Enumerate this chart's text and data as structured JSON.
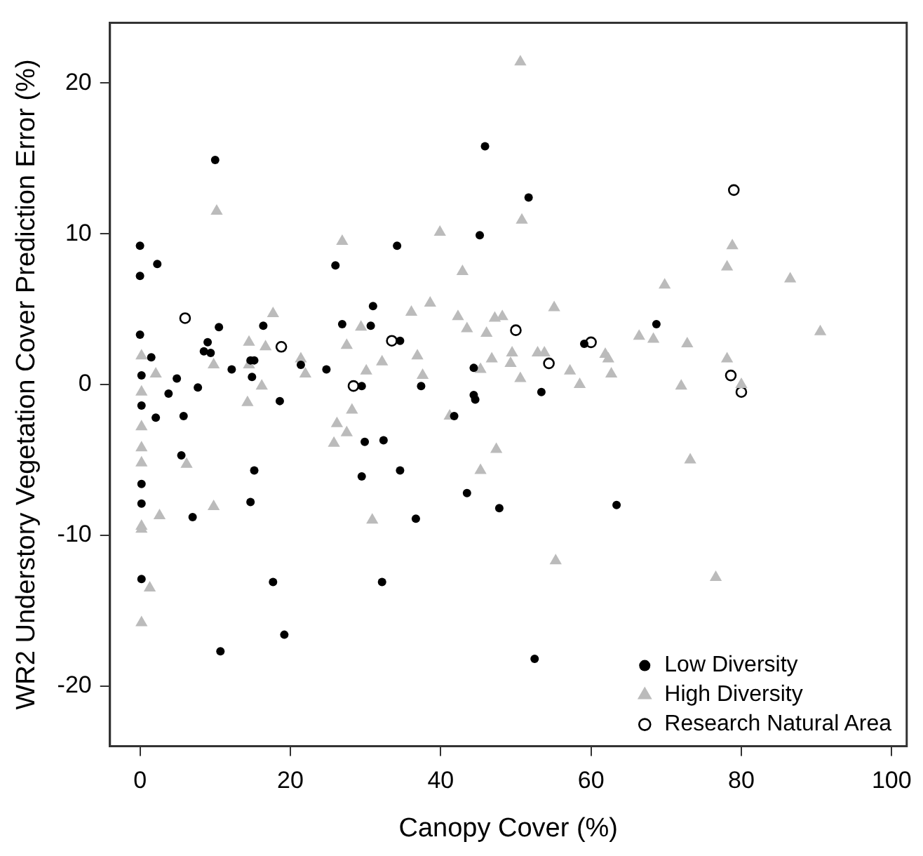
{
  "chart_data": {
    "type": "scatter",
    "xlabel": "Canopy Cover (%)",
    "ylabel": "WR2 Understory Vegetation Cover Prediction Error (%)",
    "xlim": [
      -4,
      102
    ],
    "xticks": [
      0,
      20,
      40,
      60,
      80,
      100
    ],
    "ylim": [
      -24,
      24
    ],
    "yticks": [
      -20,
      -10,
      0,
      10,
      20
    ],
    "grid": false,
    "legend": "bottom right",
    "series": [
      {
        "name": "Low Diversity",
        "color": "#000000",
        "marker": "circle",
        "x": [
          0,
          0,
          2.3,
          10,
          0,
          1.5,
          0.2,
          4.9,
          3.8,
          7.7,
          10.5,
          9,
          8.5,
          9.4,
          12.2,
          14.7,
          15.2,
          14.9,
          16.4,
          0.2,
          2.1,
          5.8,
          5.5,
          15.2,
          0.2,
          0.2,
          7,
          14.7,
          0.2,
          17.7,
          32.2,
          19.2,
          10.7,
          29.9,
          32.4,
          29.5,
          34.6,
          18.6,
          29.5,
          24.8,
          26,
          34.2,
          26.9,
          30.7,
          31,
          34.6,
          21.4,
          45.9,
          51.7,
          45.2,
          68.7,
          59.1,
          44.4,
          37.4,
          44.4,
          53.4,
          44.6,
          41.8,
          43.5,
          47.8,
          36.7,
          63.4,
          52.5
        ],
        "values": [
          9.2,
          7.2,
          8,
          14.9,
          3.3,
          1.8,
          0.6,
          0.4,
          -0.6,
          -0.2,
          3.8,
          2.8,
          2.2,
          2.1,
          1,
          1.6,
          1.6,
          0.5,
          3.9,
          -1.4,
          -2.2,
          -2.1,
          -4.7,
          -5.7,
          -6.6,
          -7.9,
          -8.8,
          -7.8,
          -12.9,
          -13.1,
          -13.1,
          -16.6,
          -17.7,
          -3.8,
          -3.7,
          -6.1,
          -5.7,
          -1.1,
          -0.1,
          1,
          7.9,
          9.2,
          4,
          3.9,
          5.2,
          2.9,
          1.3,
          15.8,
          12.4,
          9.9,
          4,
          2.7,
          1.1,
          -0.1,
          -0.7,
          -0.5,
          -1,
          -2.1,
          -7.2,
          -8.2,
          -8.9,
          -8,
          -18.2
        ]
      },
      {
        "name": "High Diversity",
        "color": "#bbbbbb",
        "marker": "triangle",
        "x": [
          10.2,
          26.9,
          17.7,
          14.5,
          16.7,
          29.4,
          27.5,
          21.4,
          32.2,
          30.1,
          22,
          14.5,
          9.8,
          2.1,
          0.2,
          0.2,
          16.2,
          14.3,
          0.2,
          0.2,
          0.2,
          6.2,
          9.8,
          2.6,
          0.2,
          0.2,
          1.3,
          0.2,
          28.2,
          26.2,
          27.5,
          25.8,
          30.9,
          50.6,
          50.8,
          39.9,
          42.9,
          38.6,
          36.1,
          42.3,
          47.2,
          48.2,
          55.1,
          69.8,
          43.5,
          46.1,
          66.4,
          68.3,
          36.9,
          46.8,
          49.5,
          49.3,
          52.9,
          53.8,
          61.9,
          62.3,
          57.2,
          62.7,
          58.5,
          45.3,
          50.6,
          37.6,
          41.2,
          47.4,
          45.3,
          55.3,
          78.8,
          78.1,
          86.5,
          90.5,
          72.8,
          78.1,
          72,
          80,
          73.2,
          76.6
        ],
        "values": [
          11.5,
          9.5,
          4.7,
          2.8,
          2.5,
          3.8,
          2.6,
          1.7,
          1.5,
          0.9,
          0.7,
          1.3,
          1.3,
          0.7,
          1.9,
          -0.5,
          -0.1,
          -1.2,
          -2.8,
          -4.2,
          -5.2,
          -5.3,
          -8.1,
          -8.7,
          -9.4,
          -9.6,
          -13.5,
          -15.8,
          -1.7,
          -2.6,
          -3.2,
          -3.9,
          -9,
          21.4,
          10.9,
          10.1,
          7.5,
          5.4,
          4.8,
          4.5,
          4.4,
          4.5,
          5.1,
          6.6,
          3.7,
          3.4,
          3.2,
          3,
          1.9,
          1.7,
          2.1,
          1.4,
          2.1,
          2.1,
          2,
          1.7,
          0.9,
          0.7,
          0,
          1,
          0.4,
          0.6,
          -2.1,
          -4.3,
          -5.7,
          -11.7,
          9.2,
          7.8,
          7,
          3.5,
          2.7,
          1.7,
          -0.1,
          0,
          -5,
          -12.8
        ]
      },
      {
        "name": "Research Natural Area",
        "color": "#000000",
        "marker": "circle",
        "x": [
          6,
          18.8,
          33.5,
          28.4,
          50,
          54.4,
          60,
          79,
          78.6,
          80
        ],
        "values": [
          4.4,
          2.5,
          2.9,
          -0.1,
          3.6,
          1.4,
          2.8,
          12.9,
          0.6,
          -0.5
        ]
      }
    ]
  }
}
